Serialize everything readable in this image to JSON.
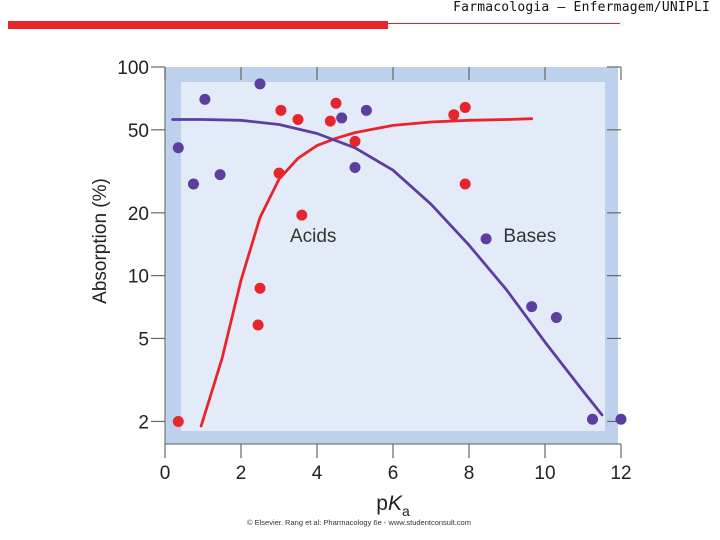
{
  "slide": {
    "header_text": "Farmacologia – Enfermagem/UNIPLI"
  },
  "chart_data": {
    "type": "scatter",
    "title": "",
    "xlabel_base": "p",
    "xlabel_italic": "K",
    "xlabel_sub": "a",
    "ylabel": "Absorption (%)",
    "yscale": "log",
    "xlim": [
      0,
      12
    ],
    "ylim": [
      1.8,
      100
    ],
    "x_ticks": [
      0,
      2,
      4,
      6,
      8,
      10,
      12
    ],
    "x_tick_labels": [
      "0",
      "2",
      "4",
      "6",
      "8",
      "10",
      "12"
    ],
    "y_ticks": [
      2,
      5,
      10,
      20,
      50,
      100
    ],
    "y_tick_labels": [
      "2",
      "5",
      "10",
      "20",
      "50",
      "100"
    ],
    "annotations": [
      {
        "text": "Acids",
        "x": 3.9,
        "y": 14.5
      },
      {
        "text": "Bases",
        "x": 9.6,
        "y": 14.5
      }
    ],
    "copyright": "© Elsevier. Rang et al: Pharmacology 6e - www.studentconsult.com",
    "series": [
      {
        "name": "Acids",
        "color": "#e8242c",
        "points": [
          {
            "x": 0.35,
            "y": 2.0
          },
          {
            "x": 2.45,
            "y": 5.8
          },
          {
            "x": 2.5,
            "y": 8.7
          },
          {
            "x": 3.0,
            "y": 31
          },
          {
            "x": 3.05,
            "y": 62
          },
          {
            "x": 3.5,
            "y": 56
          },
          {
            "x": 3.6,
            "y": 19.5
          },
          {
            "x": 4.35,
            "y": 55
          },
          {
            "x": 4.5,
            "y": 67
          },
          {
            "x": 5.0,
            "y": 44
          },
          {
            "x": 7.6,
            "y": 59
          },
          {
            "x": 7.9,
            "y": 64
          },
          {
            "x": 7.9,
            "y": 27.5
          }
        ],
        "curve": [
          {
            "x": 0.95,
            "y": 1.9
          },
          {
            "x": 1.5,
            "y": 4.0
          },
          {
            "x": 2.0,
            "y": 9.5
          },
          {
            "x": 2.5,
            "y": 19
          },
          {
            "x": 3.0,
            "y": 29
          },
          {
            "x": 3.5,
            "y": 36.5
          },
          {
            "x": 4.0,
            "y": 42
          },
          {
            "x": 4.5,
            "y": 45.5
          },
          {
            "x": 5.0,
            "y": 48.5
          },
          {
            "x": 6.0,
            "y": 52.5
          },
          {
            "x": 7.0,
            "y": 54.5
          },
          {
            "x": 8.0,
            "y": 55.5
          },
          {
            "x": 9.0,
            "y": 56
          },
          {
            "x": 9.65,
            "y": 56.5
          }
        ]
      },
      {
        "name": "Bases",
        "color": "#5b3ea0",
        "points": [
          {
            "x": 0.35,
            "y": 41
          },
          {
            "x": 0.75,
            "y": 27.5
          },
          {
            "x": 1.05,
            "y": 70
          },
          {
            "x": 1.45,
            "y": 30.5
          },
          {
            "x": 2.5,
            "y": 83
          },
          {
            "x": 4.65,
            "y": 57
          },
          {
            "x": 5.0,
            "y": 33
          },
          {
            "x": 5.3,
            "y": 62
          },
          {
            "x": 8.45,
            "y": 15
          },
          {
            "x": 9.65,
            "y": 7.1
          },
          {
            "x": 10.3,
            "y": 6.3
          },
          {
            "x": 11.25,
            "y": 2.05
          },
          {
            "x": 12.0,
            "y": 2.05
          }
        ],
        "curve": [
          {
            "x": 0.2,
            "y": 56
          },
          {
            "x": 1.0,
            "y": 56
          },
          {
            "x": 2.0,
            "y": 55.5
          },
          {
            "x": 3.0,
            "y": 53
          },
          {
            "x": 4.0,
            "y": 48
          },
          {
            "x": 5.0,
            "y": 41
          },
          {
            "x": 6.0,
            "y": 32
          },
          {
            "x": 7.0,
            "y": 22
          },
          {
            "x": 8.0,
            "y": 14
          },
          {
            "x": 9.0,
            "y": 8.5
          },
          {
            "x": 10.0,
            "y": 4.8
          },
          {
            "x": 11.0,
            "y": 2.8
          },
          {
            "x": 11.5,
            "y": 2.15
          }
        ]
      }
    ]
  }
}
